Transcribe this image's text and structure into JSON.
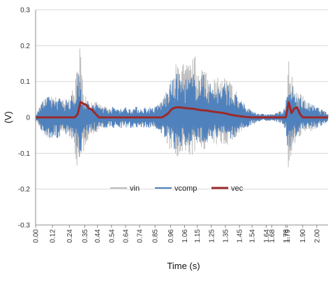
{
  "chart_data": {
    "type": "line",
    "title": "",
    "xlabel": "Time (s)",
    "ylabel": "(V)",
    "xlim": [
      0,
      2.08
    ],
    "ylim": [
      -0.3,
      0.3
    ],
    "y_ticks": [
      -0.3,
      -0.2,
      -0.1,
      0,
      0.1,
      0.2,
      0.3
    ],
    "y_tick_labels": [
      "-0.3",
      "-0.2",
      "-0.1",
      "0",
      "0.1",
      "0.2",
      "0.3"
    ],
    "x_ticks": [
      0.0,
      0.12,
      0.24,
      0.35,
      0.44,
      0.54,
      0.64,
      0.74,
      0.85,
      0.96,
      1.06,
      1.15,
      1.25,
      1.35,
      1.45,
      1.54,
      1.64,
      1.68,
      1.78,
      1.79,
      1.9,
      2.0
    ],
    "x_tick_labels": [
      "0.00",
      "0.12",
      "0.24",
      "0.35",
      "0.44",
      "0.54",
      "0.64",
      "0.74",
      "0.85",
      "0.96",
      "1.06",
      "1.15",
      "1.25",
      "1.35",
      "1.45",
      "1.54",
      "1.64",
      "1.68",
      "1.78",
      "1.79",
      "1.90",
      "2.00"
    ],
    "grid": "horizontal",
    "legend_position": "bottom-center",
    "series": [
      {
        "name": "vin",
        "color": "#bdbdbd",
        "envelope_x": [
          0.0,
          0.05,
          0.1,
          0.15,
          0.2,
          0.25,
          0.28,
          0.3,
          0.31,
          0.33,
          0.36,
          0.4,
          0.45,
          0.5,
          0.6,
          0.7,
          0.8,
          0.85,
          0.9,
          0.94,
          0.98,
          1.02,
          1.06,
          1.1,
          1.15,
          1.2,
          1.25,
          1.3,
          1.35,
          1.4,
          1.45,
          1.5,
          1.55,
          1.6,
          1.65,
          1.7,
          1.75,
          1.78,
          1.8,
          1.81,
          1.83,
          1.86,
          1.9,
          1.95,
          2.0,
          2.05,
          2.08
        ],
        "envelope_upper": [
          0.01,
          0.05,
          0.06,
          0.06,
          0.05,
          0.06,
          0.1,
          0.16,
          0.3,
          0.12,
          0.07,
          0.05,
          0.04,
          0.03,
          0.02,
          0.02,
          0.02,
          0.03,
          0.05,
          0.09,
          0.12,
          0.19,
          0.15,
          0.16,
          0.18,
          0.15,
          0.12,
          0.11,
          0.12,
          0.1,
          0.06,
          0.03,
          0.02,
          0.01,
          0.01,
          0.01,
          0.02,
          0.04,
          0.24,
          0.1,
          0.12,
          0.08,
          0.06,
          0.04,
          0.03,
          0.02,
          0.01
        ],
        "envelope_lower": [
          -0.01,
          -0.05,
          -0.06,
          -0.06,
          -0.05,
          -0.06,
          -0.1,
          -0.16,
          -0.21,
          -0.12,
          -0.07,
          -0.05,
          -0.04,
          -0.03,
          -0.02,
          -0.02,
          -0.02,
          -0.03,
          -0.05,
          -0.08,
          -0.12,
          -0.13,
          -0.12,
          -0.11,
          -0.1,
          -0.09,
          -0.08,
          -0.08,
          -0.08,
          -0.07,
          -0.05,
          -0.03,
          -0.02,
          -0.01,
          -0.01,
          -0.01,
          -0.02,
          -0.04,
          -0.2,
          -0.12,
          -0.09,
          -0.07,
          -0.05,
          -0.04,
          -0.03,
          -0.02,
          -0.01
        ]
      },
      {
        "name": "vcomp",
        "color": "#4f81bd",
        "envelope_x": [
          0.0,
          0.05,
          0.1,
          0.15,
          0.2,
          0.25,
          0.28,
          0.3,
          0.31,
          0.33,
          0.36,
          0.4,
          0.45,
          0.5,
          0.6,
          0.7,
          0.8,
          0.85,
          0.9,
          0.94,
          0.98,
          1.02,
          1.06,
          1.1,
          1.15,
          1.2,
          1.25,
          1.3,
          1.35,
          1.4,
          1.45,
          1.5,
          1.55,
          1.6,
          1.65,
          1.7,
          1.75,
          1.78,
          1.8,
          1.81,
          1.83,
          1.86,
          1.9,
          1.95,
          2.0,
          2.05,
          2.08
        ],
        "envelope_upper": [
          0.01,
          0.05,
          0.06,
          0.06,
          0.05,
          0.06,
          0.07,
          0.12,
          0.14,
          0.08,
          0.05,
          0.04,
          0.04,
          0.03,
          0.03,
          0.03,
          0.03,
          0.03,
          0.05,
          0.08,
          0.11,
          0.13,
          0.11,
          0.12,
          0.13,
          0.12,
          0.1,
          0.09,
          0.1,
          0.08,
          0.05,
          0.03,
          0.02,
          0.01,
          0.01,
          0.01,
          0.02,
          0.04,
          0.11,
          0.06,
          0.1,
          0.07,
          0.05,
          0.04,
          0.03,
          0.02,
          0.01
        ],
        "envelope_lower": [
          -0.01,
          -0.05,
          -0.06,
          -0.06,
          -0.05,
          -0.06,
          -0.07,
          -0.12,
          -0.14,
          -0.08,
          -0.05,
          -0.04,
          -0.04,
          -0.03,
          -0.03,
          -0.03,
          -0.03,
          -0.03,
          -0.05,
          -0.07,
          -0.09,
          -0.09,
          -0.08,
          -0.08,
          -0.08,
          -0.07,
          -0.06,
          -0.06,
          -0.06,
          -0.06,
          -0.04,
          -0.03,
          -0.02,
          -0.01,
          -0.01,
          -0.01,
          -0.02,
          -0.04,
          -0.11,
          -0.08,
          -0.07,
          -0.05,
          -0.04,
          -0.03,
          -0.03,
          -0.02,
          -0.01
        ]
      },
      {
        "name": "vec",
        "color": "#9c2a2a",
        "x": [
          0.0,
          0.28,
          0.3,
          0.32,
          0.34,
          0.36,
          0.38,
          0.4,
          0.42,
          0.45,
          0.6,
          0.9,
          0.94,
          0.97,
          1.0,
          1.03,
          1.06,
          1.09,
          1.12,
          1.15,
          1.18,
          1.22,
          1.26,
          1.3,
          1.34,
          1.38,
          1.42,
          1.46,
          1.5,
          1.55,
          1.78,
          1.79,
          1.8,
          1.81,
          1.82,
          1.84,
          1.86,
          1.88,
          1.9,
          2.08
        ],
        "y": [
          0.0,
          0.0,
          0.01,
          0.043,
          0.038,
          0.035,
          0.025,
          0.022,
          0.013,
          0.0,
          0.0,
          0.0,
          0.01,
          0.024,
          0.028,
          0.028,
          0.026,
          0.025,
          0.024,
          0.022,
          0.02,
          0.019,
          0.016,
          0.014,
          0.012,
          0.008,
          0.005,
          0.003,
          0.001,
          0.0,
          0.0,
          0.02,
          0.042,
          0.028,
          0.012,
          0.025,
          0.028,
          0.01,
          0.0,
          0.0
        ]
      }
    ]
  }
}
